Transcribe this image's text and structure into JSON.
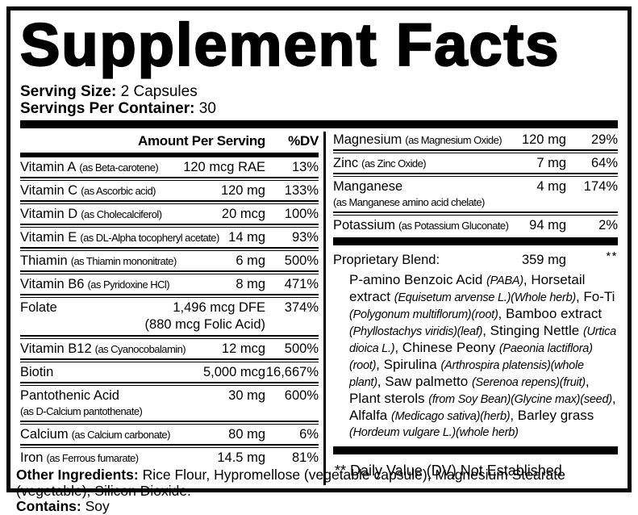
{
  "title": "Supplement Facts",
  "serving": {
    "size_label": "Serving Size:",
    "size_value": "2 Capsules",
    "per_container_label": "Servings Per Container:",
    "per_container_value": "30"
  },
  "table": {
    "header": {
      "amount": "Amount Per Serving",
      "dv": "%DV"
    },
    "left_rows": [
      {
        "name": "Vitamin A",
        "paren": "(as Beta-carotene)",
        "amount": "120 mcg RAE",
        "dv": "13%"
      },
      {
        "name": "Vitamin C",
        "paren": "(as Ascorbic acid)",
        "amount": "120 mg",
        "dv": "133%"
      },
      {
        "name": "Vitamin D",
        "paren": "(as Cholecalciferol)",
        "amount": "20 mcg",
        "dv": "100%"
      },
      {
        "name": "Vitamin E",
        "paren": "(as DL-Alpha tocopheryl acetate)",
        "amount": "14 mg",
        "dv": "93%"
      },
      {
        "name": "Thiamin",
        "paren": "(as Thiamin mononitrate)",
        "amount": "6 mg",
        "dv": "500%"
      },
      {
        "name": "Vitamin B6",
        "paren": "(as Pyridoxine HCl)",
        "amount": "8 mg",
        "dv": "471%"
      },
      {
        "name": "Folate",
        "paren": "",
        "amount": "1,496 mcg DFE",
        "amount2": "(880 mcg Folic Acid)",
        "dv": "374%"
      },
      {
        "name": "Vitamin B12",
        "paren": "(as Cyanocobalamin)",
        "amount": "12 mcg",
        "dv": "500%"
      },
      {
        "name": "Biotin",
        "paren": "",
        "amount": "5,000 mcg",
        "dv": "16,667%"
      },
      {
        "name": "Pantothenic Acid",
        "paren": "(as D-Calcium pantothenate)",
        "amount": "30 mg",
        "dv": "600%"
      },
      {
        "name": "Calcium",
        "paren": "(as Calcium carbonate)",
        "amount": "80 mg",
        "dv": "6%"
      },
      {
        "name": "Iron",
        "paren": "(as Ferrous fumarate)",
        "amount": "14.5 mg",
        "dv": "81%"
      }
    ],
    "right_rows": [
      {
        "name": "Magnesium",
        "paren": "(as Magnesium Oxide)",
        "amount": "120 mg",
        "dv": "29%"
      },
      {
        "name": "Zinc",
        "paren": "(as Zinc Oxide)",
        "amount": "7 mg",
        "dv": "64%"
      },
      {
        "name": "Manganese",
        "paren": "(as Manganese amino acid chelate)",
        "amount": "4 mg",
        "dv": "174%"
      },
      {
        "name": "Potassium",
        "paren": "(as Potassium Gluconate)",
        "amount": "94 mg",
        "dv": "2%"
      }
    ],
    "blend": {
      "label": "Proprietary Blend:",
      "amount": "359 mg",
      "dv": "**",
      "segments": [
        {
          "text": "P-amino Benzoic Acid ",
          "style": "regular"
        },
        {
          "text": "(PABA)",
          "style": "italic"
        },
        {
          "text": ", Horsetail extract ",
          "style": "regular"
        },
        {
          "text": "(Equisetum arvense L.)(Whole herb)",
          "style": "italic"
        },
        {
          "text": ", Fo-Ti ",
          "style": "regular"
        },
        {
          "text": "(Polygonum multiflorum)(root)",
          "style": "italic"
        },
        {
          "text": ", Bamboo extract ",
          "style": "regular"
        },
        {
          "text": "(Phyllostachys viridis)(leaf)",
          "style": "italic"
        },
        {
          "text": ", Stinging Nettle ",
          "style": "regular"
        },
        {
          "text": "(Urtica dioica L.)",
          "style": "italic"
        },
        {
          "text": ", Chinese Peony ",
          "style": "regular"
        },
        {
          "text": "(Paeonia lactiflora)(root)",
          "style": "italic"
        },
        {
          "text": ", Spirulina ",
          "style": "regular"
        },
        {
          "text": "(Arthrospira platensis)(whole plant)",
          "style": "italic"
        },
        {
          "text": ", Saw palmetto ",
          "style": "regular"
        },
        {
          "text": "(Serenoa repens)(fruit)",
          "style": "italic"
        },
        {
          "text": ", Plant sterols ",
          "style": "regular"
        },
        {
          "text": "(from Soy Bean)(Glycine max)(seed)",
          "style": "italic"
        },
        {
          "text": ", Alfalfa ",
          "style": "regular"
        },
        {
          "text": "(Medicago sativa)(herb)",
          "style": "italic"
        },
        {
          "text": ", Barley grass ",
          "style": "regular"
        },
        {
          "text": "(Hordeum vulgare L.)(whole herb)",
          "style": "italic"
        }
      ]
    },
    "footnote": "** Daily Value (DV) Not Established."
  },
  "footer": {
    "other_label": "Other Ingredients:",
    "other_value": "Rice Flour, Hypromellose (vegetable capsule), Magnesium Stearate (vegetable), Silicon Dioxide.",
    "contains_label": "Contains:",
    "contains_value": "Soy"
  },
  "colors": {
    "ink": "#000000",
    "paper": "#ffffff"
  }
}
